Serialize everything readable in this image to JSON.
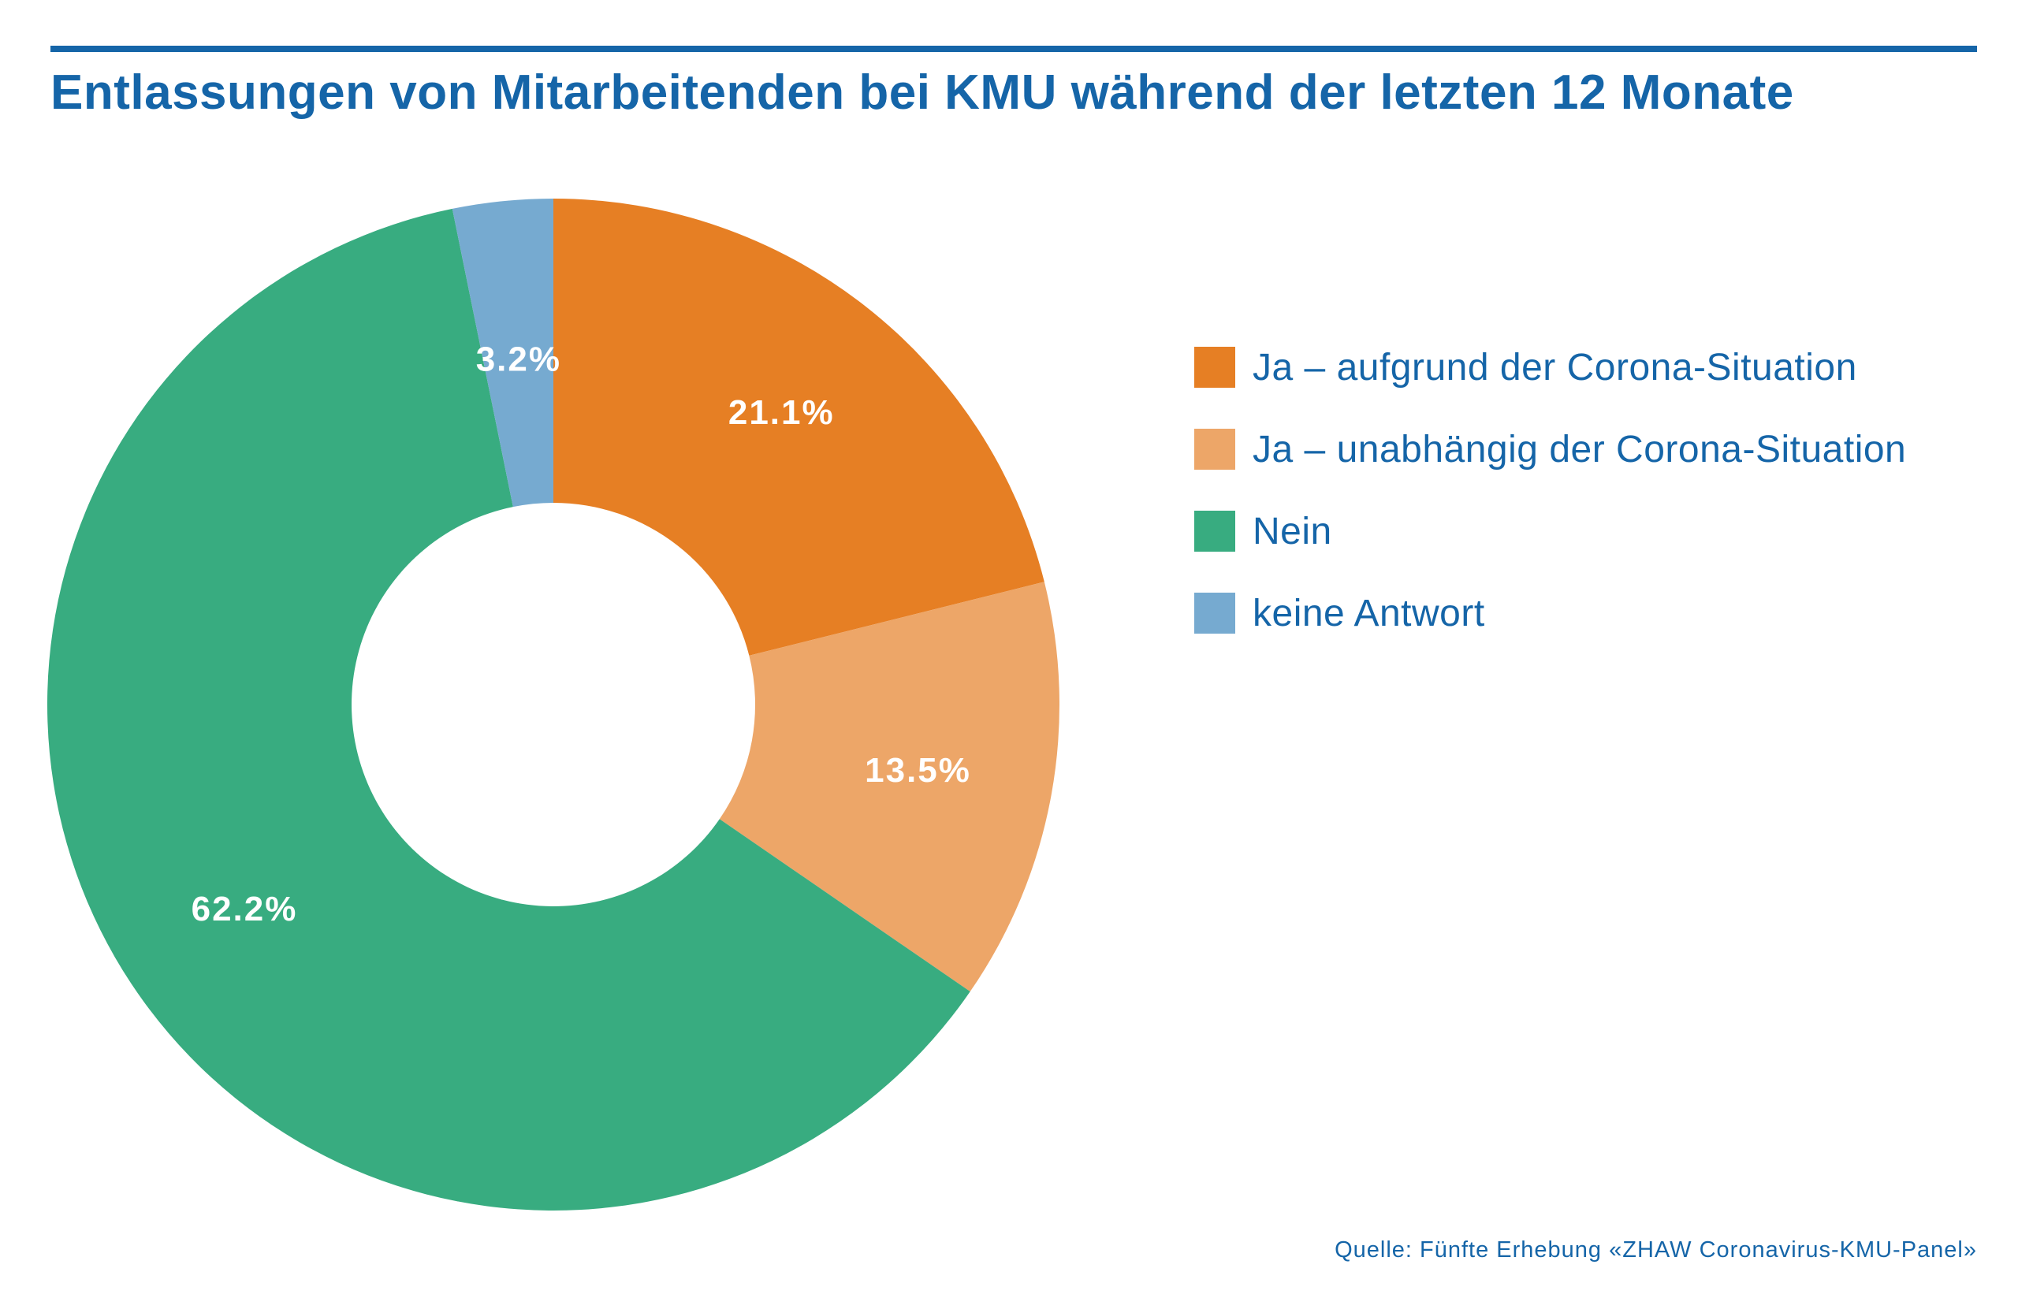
{
  "title": "Entlassungen von Mitarbeitenden bei KMU während der letzten 12 Monate",
  "source": "Quelle: Fünfte Erhebung «ZHAW Coronavirus-KMU-Panel»",
  "chart_data": {
    "type": "pie",
    "variant": "donut",
    "title": "Entlassungen von Mitarbeitenden bei KMU während der letzten 12 Monate",
    "start": "12 o'clock",
    "direction": "clockwise",
    "legend_position": "right",
    "categories": [
      "Ja – aufgrund der Corona-Situation",
      "Ja – unabhängig der Corona-Situation",
      "Nein",
      "keine Antwort"
    ],
    "values": [
      21.1,
      13.5,
      62.2,
      3.2
    ],
    "labels": [
      "21.1%",
      "13.5%",
      "62.2%",
      "3.2%"
    ],
    "colors": [
      "#e67f24",
      "#eda668",
      "#38ac80",
      "#76aad0"
    ]
  }
}
